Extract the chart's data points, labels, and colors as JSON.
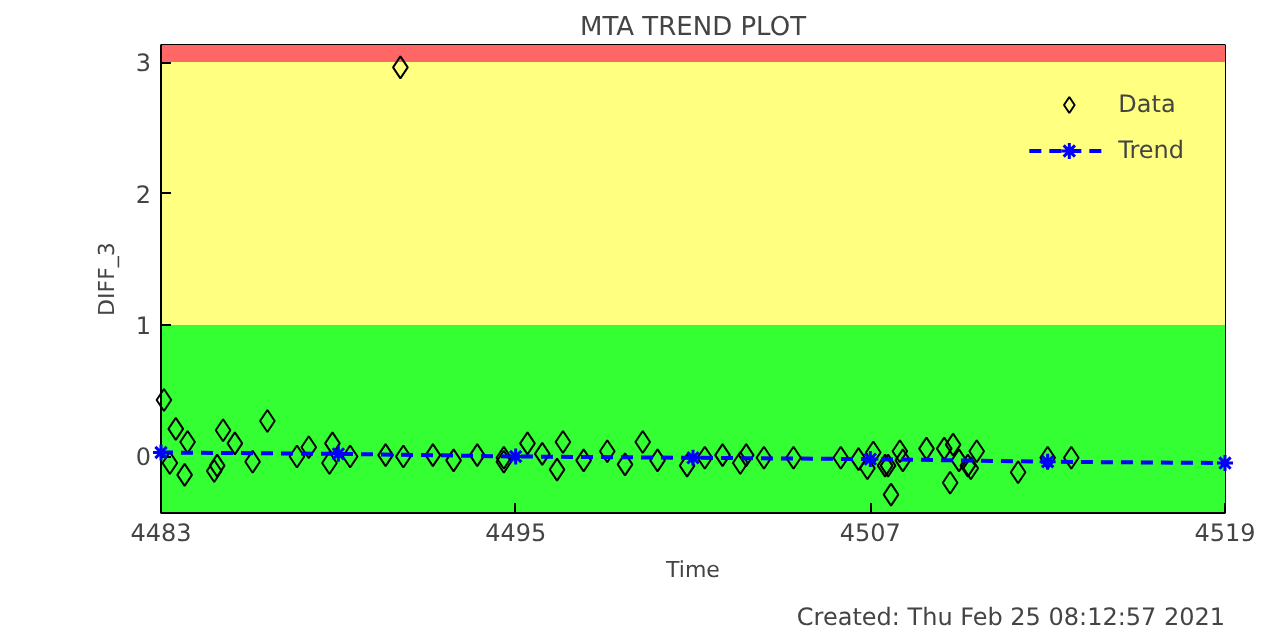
{
  "chart_data": {
    "type": "scatter",
    "title": "MTA TREND PLOT",
    "xlabel": "Time",
    "ylabel": "DIFF_3",
    "xlim": [
      4483,
      4519
    ],
    "ylim": [
      -0.43,
      3.13
    ],
    "xticks": [
      4483,
      4495,
      4507,
      4519
    ],
    "yticks": [
      0,
      1,
      2,
      3
    ],
    "legend": "top right",
    "bands": [
      {
        "axis": "y",
        "from": 3,
        "to": 3.13,
        "color": "#ff6666"
      },
      {
        "axis": "y",
        "from": 1,
        "to": 3,
        "color": "#ffff80"
      },
      {
        "axis": "y",
        "from": -0.43,
        "to": 1,
        "color": "#33ff33"
      }
    ],
    "series": [
      {
        "name": "Data",
        "marker": "diamond",
        "color": "#000000",
        "x": [
          4483.1,
          4483.5,
          4485.1,
          4486.6,
          4483.9,
          4483.8,
          4483.3,
          4484.9,
          4485.5,
          4484.8,
          4486.1,
          4487.6,
          4488.0,
          4488.8,
          4488.7,
          4489.4,
          4490.6,
          4491.2,
          4492.2,
          4492.9,
          4493.7,
          4494.6,
          4491.1,
          4494.6,
          4495.4,
          4495.9,
          4496.6,
          4496.4,
          4497.3,
          4498.1,
          4498.7,
          4499.3,
          4499.8,
          4500.8,
          4501.4,
          4502.0,
          4502.6,
          4502.8,
          4503.4,
          4504.4,
          4506.0,
          4506.6,
          4506.9,
          4507.1,
          4507.6,
          4507.7,
          4507.5,
          4508.0,
          4508.1,
          4508.9,
          4509.5,
          4509.8,
          4509.7,
          4510.0,
          4510.3,
          4510.6,
          4510.4,
          4512.0,
          4513.0,
          4513.8
        ],
        "values": [
          0.43,
          0.21,
          0.2,
          0.27,
          0.11,
          -0.14,
          -0.05,
          -0.07,
          0.1,
          -0.11,
          -0.04,
          0.0,
          0.07,
          0.1,
          -0.05,
          0.0,
          0.01,
          0.0,
          0.01,
          -0.03,
          0.01,
          -0.01,
          2.96,
          -0.04,
          0.1,
          0.02,
          0.11,
          -0.1,
          -0.03,
          0.04,
          -0.06,
          0.11,
          -0.03,
          -0.07,
          -0.01,
          0.01,
          -0.05,
          0.01,
          -0.01,
          -0.01,
          -0.01,
          -0.02,
          -0.09,
          0.03,
          -0.07,
          -0.29,
          -0.07,
          0.04,
          -0.03,
          0.06,
          0.06,
          0.09,
          -0.2,
          -0.03,
          -0.07,
          0.04,
          -0.09,
          -0.12,
          -0.01,
          -0.01
        ]
      },
      {
        "name": "Trend",
        "type": "line",
        "marker": "cross",
        "line_style": "dashed",
        "color": "#0000ff",
        "x": [
          4483,
          4489,
          4495,
          4501,
          4507,
          4513,
          4519
        ],
        "values": [
          0.03,
          0.02,
          0.0,
          -0.01,
          -0.02,
          -0.04,
          -0.05
        ]
      }
    ],
    "annotations": [
      "Created: Thu Feb 25 08:12:57 2021"
    ]
  }
}
